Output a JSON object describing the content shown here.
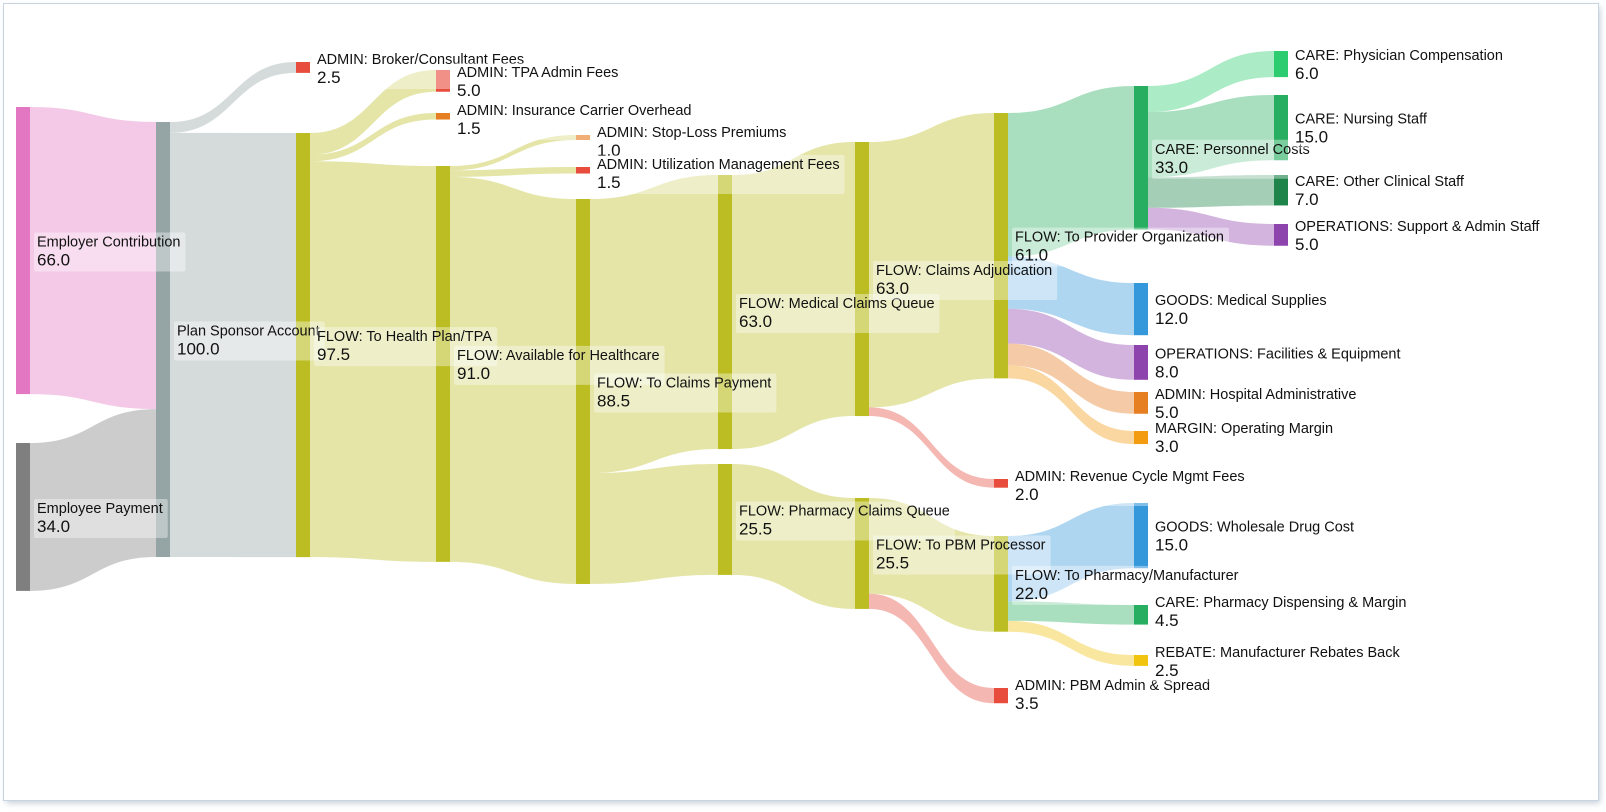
{
  "chart_data": {
    "type": "sankey",
    "title": "",
    "units": "",
    "colors": {
      "flow": "#bcbd22",
      "admin": "#e74c3c",
      "admin_alt": "#e67e22",
      "care": "#27ae60",
      "goods": "#3498db",
      "operations": "#8e44ad",
      "margin": "#f39c12",
      "rebate": "#f1c40f",
      "employer": "#e377c2",
      "employee": "#7f7f7f",
      "sponsor": "#95a5a6"
    },
    "nodes": [
      {
        "id": "employer",
        "name": "Employer Contribution",
        "value": "66.0",
        "color": "#e377c2",
        "col": 0
      },
      {
        "id": "employee",
        "name": "Employee Payment",
        "value": "34.0",
        "color": "#7f7f7f",
        "col": 0
      },
      {
        "id": "sponsor",
        "name": "Plan Sponsor Account",
        "value": "100.0",
        "color": "#95a5a6",
        "col": 1
      },
      {
        "id": "broker",
        "name": "ADMIN: Broker/Consultant Fees",
        "value": "2.5",
        "color": "#e74c3c",
        "col": 2
      },
      {
        "id": "tohp",
        "name": "FLOW: To Health Plan/TPA",
        "value": "97.5",
        "color": "#bcbd22",
        "col": 2
      },
      {
        "id": "tpa",
        "name": "ADMIN: TPA Admin Fees",
        "value": "5.0",
        "color": "#e74c3c",
        "col": 3
      },
      {
        "id": "carrier",
        "name": "ADMIN: Insurance Carrier Overhead",
        "value": "1.5",
        "color": "#e67e22",
        "col": 3
      },
      {
        "id": "avail",
        "name": "FLOW: Available for Healthcare",
        "value": "91.0",
        "color": "#bcbd22",
        "col": 3
      },
      {
        "id": "stoploss",
        "name": "ADMIN: Stop-Loss Premiums",
        "value": "1.0",
        "color": "#e67e22",
        "col": 4
      },
      {
        "id": "um",
        "name": "ADMIN: Utilization Management Fees",
        "value": "1.5",
        "color": "#e74c3c",
        "col": 4
      },
      {
        "id": "claimspay",
        "name": "FLOW: To Claims Payment",
        "value": "88.5",
        "color": "#bcbd22",
        "col": 4
      },
      {
        "id": "medq",
        "name": "FLOW: Medical Claims Queue",
        "value": "63.0",
        "color": "#bcbd22",
        "col": 5
      },
      {
        "id": "rxq",
        "name": "FLOW: Pharmacy Claims Queue",
        "value": "25.5",
        "color": "#bcbd22",
        "col": 5
      },
      {
        "id": "adj",
        "name": "FLOW: Claims Adjudication",
        "value": "63.0",
        "color": "#bcbd22",
        "col": 6
      },
      {
        "id": "pbm",
        "name": "FLOW: To PBM Processor",
        "value": "25.5",
        "color": "#bcbd22",
        "col": 6
      },
      {
        "id": "provider",
        "name": "FLOW: To Provider Organization",
        "value": "61.0",
        "color": "#bcbd22",
        "col": 7
      },
      {
        "id": "revcycle",
        "name": "ADMIN: Revenue Cycle Mgmt Fees",
        "value": "2.0",
        "color": "#e74c3c",
        "col": 7
      },
      {
        "id": "pharmmfr",
        "name": "FLOW: To Pharmacy/Manufacturer",
        "value": "22.0",
        "color": "#bcbd22",
        "col": 7
      },
      {
        "id": "pbmadmin",
        "name": "ADMIN: PBM Admin & Spread",
        "value": "3.5",
        "color": "#e74c3c",
        "col": 7
      },
      {
        "id": "personnel",
        "name": "CARE: Personnel Costs",
        "value": "33.0",
        "color": "#27ae60",
        "col": 8
      },
      {
        "id": "medsup",
        "name": "GOODS: Medical Supplies",
        "value": "12.0",
        "color": "#3498db",
        "col": 8
      },
      {
        "id": "facilities",
        "name": "OPERATIONS: Facilities & Equipment",
        "value": "8.0",
        "color": "#8e44ad",
        "col": 8
      },
      {
        "id": "hospadmin",
        "name": "ADMIN: Hospital Administrative",
        "value": "5.0",
        "color": "#e67e22",
        "col": 8
      },
      {
        "id": "opmargin",
        "name": "MARGIN: Operating Margin",
        "value": "3.0",
        "color": "#f39c12",
        "col": 8
      },
      {
        "id": "wholesale",
        "name": "GOODS: Wholesale Drug Cost",
        "value": "15.0",
        "color": "#3498db",
        "col": 8
      },
      {
        "id": "dispensing",
        "name": "CARE: Pharmacy Dispensing & Margin",
        "value": "4.5",
        "color": "#27ae60",
        "col": 8
      },
      {
        "id": "rebates",
        "name": "REBATE: Manufacturer Rebates Back",
        "value": "2.5",
        "color": "#f1c40f",
        "col": 8
      },
      {
        "id": "physician",
        "name": "CARE: Physician Compensation",
        "value": "6.0",
        "color": "#2ecc71",
        "col": 9
      },
      {
        "id": "nursing",
        "name": "CARE: Nursing Staff",
        "value": "15.0",
        "color": "#27ae60",
        "col": 9
      },
      {
        "id": "otherclin",
        "name": "CARE: Other Clinical Staff",
        "value": "7.0",
        "color": "#1e8449",
        "col": 9
      },
      {
        "id": "support",
        "name": "OPERATIONS: Support & Admin Staff",
        "value": "5.0",
        "color": "#8e44ad",
        "col": 9
      }
    ],
    "links": [
      {
        "source": "employer",
        "target": "sponsor",
        "value": 66.0,
        "color": "#e377c2"
      },
      {
        "source": "employee",
        "target": "sponsor",
        "value": 34.0,
        "color": "#7f7f7f"
      },
      {
        "source": "sponsor",
        "target": "broker",
        "value": 2.5,
        "color": "#95a5a6"
      },
      {
        "source": "sponsor",
        "target": "tohp",
        "value": 97.5,
        "color": "#95a5a6"
      },
      {
        "source": "tohp",
        "target": "tpa",
        "value": 5.0,
        "color": "#bcbd22"
      },
      {
        "source": "tohp",
        "target": "carrier",
        "value": 1.5,
        "color": "#bcbd22"
      },
      {
        "source": "tohp",
        "target": "avail",
        "value": 91.0,
        "color": "#bcbd22"
      },
      {
        "source": "avail",
        "target": "stoploss",
        "value": 1.0,
        "color": "#bcbd22"
      },
      {
        "source": "avail",
        "target": "um",
        "value": 1.5,
        "color": "#bcbd22"
      },
      {
        "source": "avail",
        "target": "claimspay",
        "value": 88.5,
        "color": "#bcbd22"
      },
      {
        "source": "claimspay",
        "target": "medq",
        "value": 63.0,
        "color": "#bcbd22"
      },
      {
        "source": "claimspay",
        "target": "rxq",
        "value": 25.5,
        "color": "#bcbd22"
      },
      {
        "source": "medq",
        "target": "adj",
        "value": 63.0,
        "color": "#bcbd22"
      },
      {
        "source": "rxq",
        "target": "pbm",
        "value": 25.5,
        "color": "#bcbd22"
      },
      {
        "source": "adj",
        "target": "provider",
        "value": 61.0,
        "color": "#bcbd22"
      },
      {
        "source": "adj",
        "target": "revcycle",
        "value": 2.0,
        "color": "#e74c3c"
      },
      {
        "source": "pbm",
        "target": "pharmmfr",
        "value": 22.0,
        "color": "#bcbd22"
      },
      {
        "source": "pbm",
        "target": "pbmadmin",
        "value": 3.5,
        "color": "#e74c3c"
      },
      {
        "source": "provider",
        "target": "personnel",
        "value": 33.0,
        "color": "#27ae60"
      },
      {
        "source": "provider",
        "target": "medsup",
        "value": 12.0,
        "color": "#3498db"
      },
      {
        "source": "provider",
        "target": "facilities",
        "value": 8.0,
        "color": "#8e44ad"
      },
      {
        "source": "provider",
        "target": "hospadmin",
        "value": 5.0,
        "color": "#e67e22"
      },
      {
        "source": "provider",
        "target": "opmargin",
        "value": 3.0,
        "color": "#f39c12"
      },
      {
        "source": "pharmmfr",
        "target": "wholesale",
        "value": 15.0,
        "color": "#3498db"
      },
      {
        "source": "pharmmfr",
        "target": "dispensing",
        "value": 4.5,
        "color": "#27ae60"
      },
      {
        "source": "pharmmfr",
        "target": "rebates",
        "value": 2.5,
        "color": "#f1c40f"
      },
      {
        "source": "personnel",
        "target": "physician",
        "value": 6.0,
        "color": "#2ecc71"
      },
      {
        "source": "personnel",
        "target": "nursing",
        "value": 15.0,
        "color": "#27ae60"
      },
      {
        "source": "personnel",
        "target": "otherclin",
        "value": 7.0,
        "color": "#1e8449"
      },
      {
        "source": "personnel",
        "target": "support",
        "value": 5.0,
        "color": "#8e44ad"
      }
    ]
  }
}
